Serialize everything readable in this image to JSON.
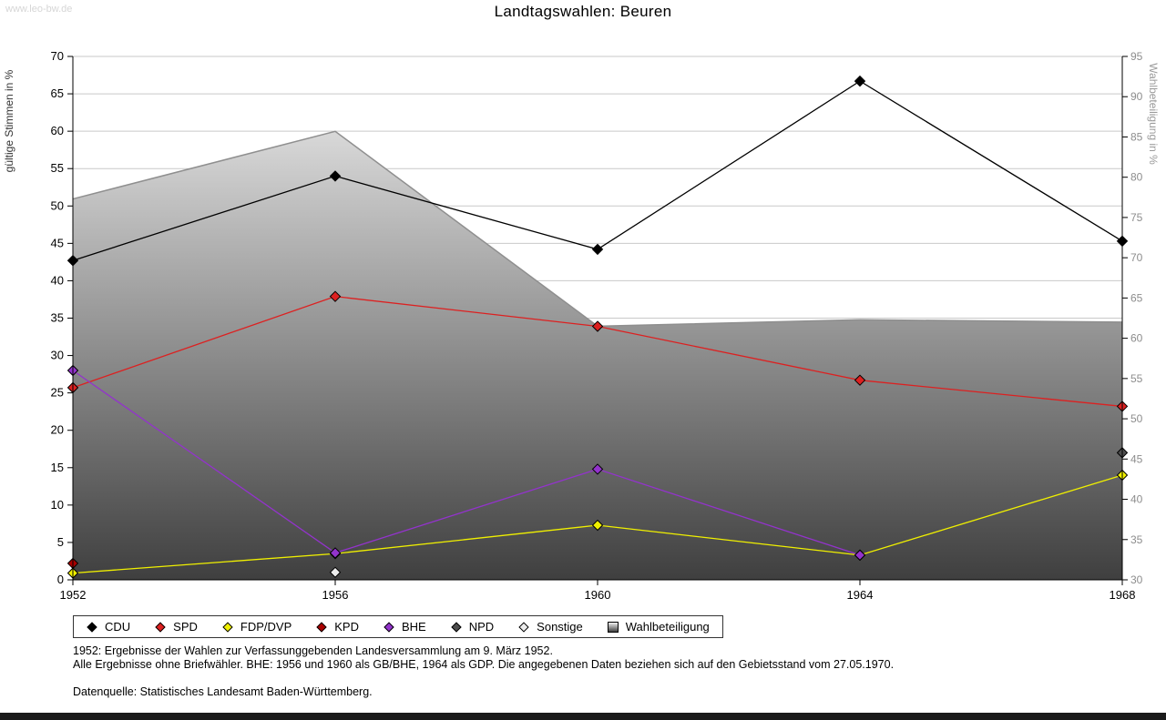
{
  "watermark": "www.leo-bw.de",
  "title": "Landtagswahlen: Beuren",
  "chart_data": {
    "type": "line",
    "title": "Landtagswahlen: Beuren",
    "x": [
      1952,
      1956,
      1960,
      1964,
      1968
    ],
    "left_axis": {
      "label": "gültige Stimmen in %",
      "min": 0,
      "max": 70,
      "tick_step": 5
    },
    "right_axis": {
      "label": "Wahlbeteiligung in %",
      "min": 30,
      "max": 95,
      "tick_step": 5
    },
    "grid": true,
    "grid_color": "#c9c9c9",
    "legend_position": "bottom",
    "series": [
      {
        "name": "CDU",
        "color": "#000000",
        "values": [
          42.7,
          54.0,
          44.2,
          66.7,
          45.3
        ]
      },
      {
        "name": "SPD",
        "color": "#dd2020",
        "values": [
          25.7,
          37.9,
          33.9,
          26.7,
          23.2
        ]
      },
      {
        "name": "FDP/DVP",
        "color": "#f0f000",
        "values": [
          0.9,
          3.5,
          7.3,
          3.3,
          14.0
        ]
      },
      {
        "name": "KPD",
        "color": "#aa0000",
        "values": [
          2.2,
          null,
          null,
          null,
          null
        ]
      },
      {
        "name": "BHE",
        "color": "#9333cc",
        "values": [
          28.0,
          3.6,
          14.8,
          3.3,
          null
        ]
      },
      {
        "name": "NPD",
        "color": "#4d4d4d",
        "values": [
          null,
          null,
          null,
          null,
          17.0
        ]
      },
      {
        "name": "Sonstige",
        "color": "#ededed",
        "values": [
          null,
          1.0,
          null,
          null,
          null
        ]
      }
    ],
    "area_series": {
      "name": "Wahlbeteiligung",
      "axis": "right",
      "values": [
        77.3,
        85.7,
        61.5,
        62.3,
        62.0
      ],
      "fill_top": "#f2f2f2",
      "fill_bottom": "#3f3f3f",
      "stroke": "#8f8f8f"
    }
  },
  "legend": {
    "items": [
      {
        "label": "CDU",
        "swatch": "diamond",
        "color": "#000000"
      },
      {
        "label": "SPD",
        "swatch": "diamond",
        "color": "#dd2020"
      },
      {
        "label": "FDP/DVP",
        "swatch": "diamond",
        "color": "#f0f000"
      },
      {
        "label": "KPD",
        "swatch": "diamond",
        "color": "#aa0000"
      },
      {
        "label": "BHE",
        "swatch": "diamond",
        "color": "#9333cc"
      },
      {
        "label": "NPD",
        "swatch": "diamond",
        "color": "#4d4d4d"
      },
      {
        "label": "Sonstige",
        "swatch": "diamond",
        "color": "#ededed"
      },
      {
        "label": "Wahlbeteiligung",
        "swatch": "square",
        "color": "gradient"
      }
    ]
  },
  "notes": [
    "1952: Ergebnisse der Wahlen zur Verfassunggebenden Landesversammlung am 9. März 1952.",
    "Alle Ergebnisse ohne Briefwähler. BHE: 1956 und 1960 als GB/BHE, 1964 als GDP. Die angegebenen Daten beziehen sich auf den Gebietsstand vom 27.05.1970.",
    "Datenquelle: Statistisches Landesamt Baden-Württemberg."
  ]
}
